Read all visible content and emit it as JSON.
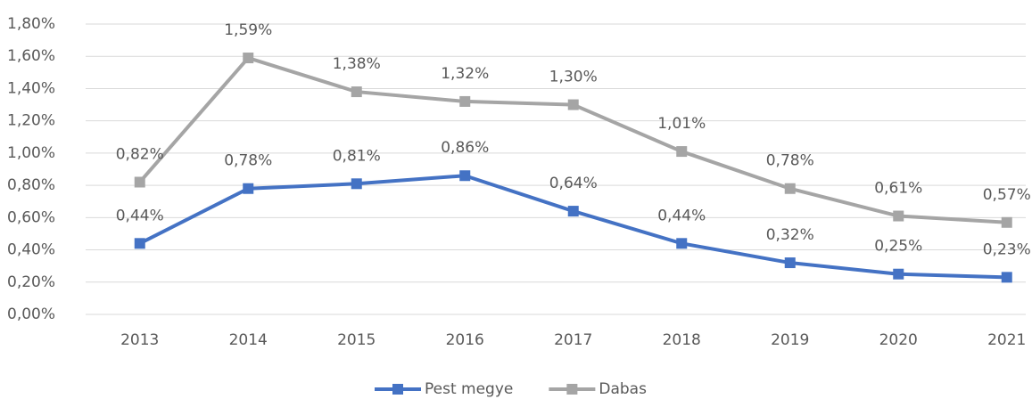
{
  "chart_data": {
    "type": "line",
    "categories": [
      "2013",
      "2014",
      "2015",
      "2016",
      "2017",
      "2018",
      "2019",
      "2020",
      "2021"
    ],
    "series": [
      {
        "name": "Pest megye",
        "color": "#4472c4",
        "values": [
          0.44,
          0.78,
          0.81,
          0.86,
          0.64,
          0.44,
          0.32,
          0.25,
          0.23
        ],
        "value_labels": [
          "0,44%",
          "0,78%",
          "0,81%",
          "0,86%",
          "0,64%",
          "0,44%",
          "0,32%",
          "0,25%",
          "0,23%"
        ]
      },
      {
        "name": "Dabas",
        "color": "#a5a5a5",
        "values": [
          0.82,
          1.59,
          1.38,
          1.32,
          1.3,
          1.01,
          0.78,
          0.61,
          0.57
        ],
        "value_labels": [
          "0,82%",
          "1,59%",
          "1,38%",
          "1,32%",
          "1,30%",
          "1,01%",
          "0,78%",
          "0,61%",
          "0,57%"
        ]
      }
    ],
    "ylim": [
      0,
      1.8
    ],
    "yticks": [
      {
        "value": 0,
        "label": "0,00%"
      },
      {
        "value": 0.2,
        "label": "0,20%"
      },
      {
        "value": 0.4,
        "label": "0,40%"
      },
      {
        "value": 0.6,
        "label": "0,60%"
      },
      {
        "value": 0.8,
        "label": "0,80%"
      },
      {
        "value": 1.0,
        "label": "1,00%"
      },
      {
        "value": 1.2,
        "label": "1,20%"
      },
      {
        "value": 1.4,
        "label": "1,40%"
      },
      {
        "value": 1.6,
        "label": "1,60%"
      },
      {
        "value": 1.8,
        "label": "1,80%"
      }
    ],
    "grid": true,
    "legend": "bottom"
  }
}
